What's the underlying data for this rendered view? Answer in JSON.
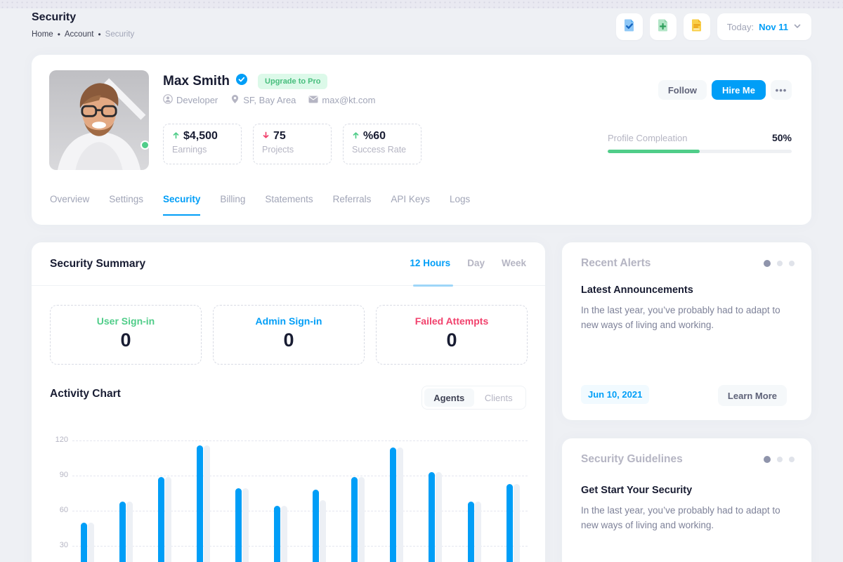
{
  "page": {
    "title": "Security"
  },
  "breadcrumb": {
    "items": [
      "Home",
      "Account",
      "Security"
    ],
    "separator": "•"
  },
  "topbar": {
    "icons": [
      "file-check-icon",
      "file-plus-icon",
      "file-lines-icon"
    ],
    "date_label": "Today:",
    "date_value": "Nov 11"
  },
  "profile": {
    "name": "Max Smith",
    "verified": true,
    "badge": "Upgrade to Pro",
    "role": "Developer",
    "location": "SF, Bay Area",
    "email": "max@kt.com",
    "stats": [
      {
        "trend": "up",
        "value": "$4,500",
        "label": "Earnings"
      },
      {
        "trend": "down",
        "value": "75",
        "label": "Projects"
      },
      {
        "trend": "up",
        "value": "%60",
        "label": "Success Rate"
      }
    ],
    "follow_label": "Follow",
    "hire_label": "Hire Me",
    "more_label": "•••",
    "completion": {
      "label": "Profile Compleation",
      "percent": "50%",
      "value": 50
    }
  },
  "tabs": {
    "items": [
      "Overview",
      "Settings",
      "Security",
      "Billing",
      "Statements",
      "Referrals",
      "API Keys",
      "Logs"
    ],
    "active": "Security"
  },
  "summary": {
    "title": "Security Summary",
    "periods": [
      "12 Hours",
      "Day",
      "Week"
    ],
    "active_period": "12 Hours",
    "stats": [
      {
        "label": "User Sign-in",
        "value": "0",
        "color": "#50cd89"
      },
      {
        "label": "Admin Sign-in",
        "value": "0",
        "color": "#009ef7"
      },
      {
        "label": "Failed Attempts",
        "value": "0",
        "color": "#f1416c"
      }
    ]
  },
  "activity": {
    "title": "Activity Chart",
    "toggle": [
      "Agents",
      "Clients"
    ],
    "active_toggle": "Agents"
  },
  "chart_data": {
    "type": "bar",
    "title": "Activity Chart",
    "series": [
      {
        "name": "Agents",
        "values": [
          50,
          68,
          89,
          116,
          79,
          64,
          78,
          89,
          114,
          93,
          68,
          83
        ]
      },
      {
        "name": "shadow",
        "values": [
          50,
          68,
          89,
          116,
          79,
          64,
          69,
          89,
          114,
          93,
          68,
          83
        ]
      }
    ],
    "yticks": [
      30,
      60,
      90,
      120
    ],
    "ylim": [
      0,
      120
    ],
    "grid": "horizontal-dashed",
    "legend": "none",
    "colors": {
      "bar": "#009ef7",
      "shadow": "#edf0f5"
    }
  },
  "alerts": {
    "title": "Recent Alerts",
    "heading": "Latest Announcements",
    "body": "In the last year, you’ve probably had to adapt to new ways of living and working.",
    "date": "Jun 10, 2021",
    "button": "Learn More"
  },
  "guidelines": {
    "title": "Security Guidelines",
    "heading": "Get Start Your Security",
    "body": "In the last year, you’ve probably had to adapt to new ways of living and working."
  },
  "colors": {
    "primary": "#009ef7",
    "success": "#50cd89",
    "danger": "#f1416c",
    "background": "#eef0f4",
    "card": "#ffffff",
    "muted_text": "#a1a5b7"
  }
}
